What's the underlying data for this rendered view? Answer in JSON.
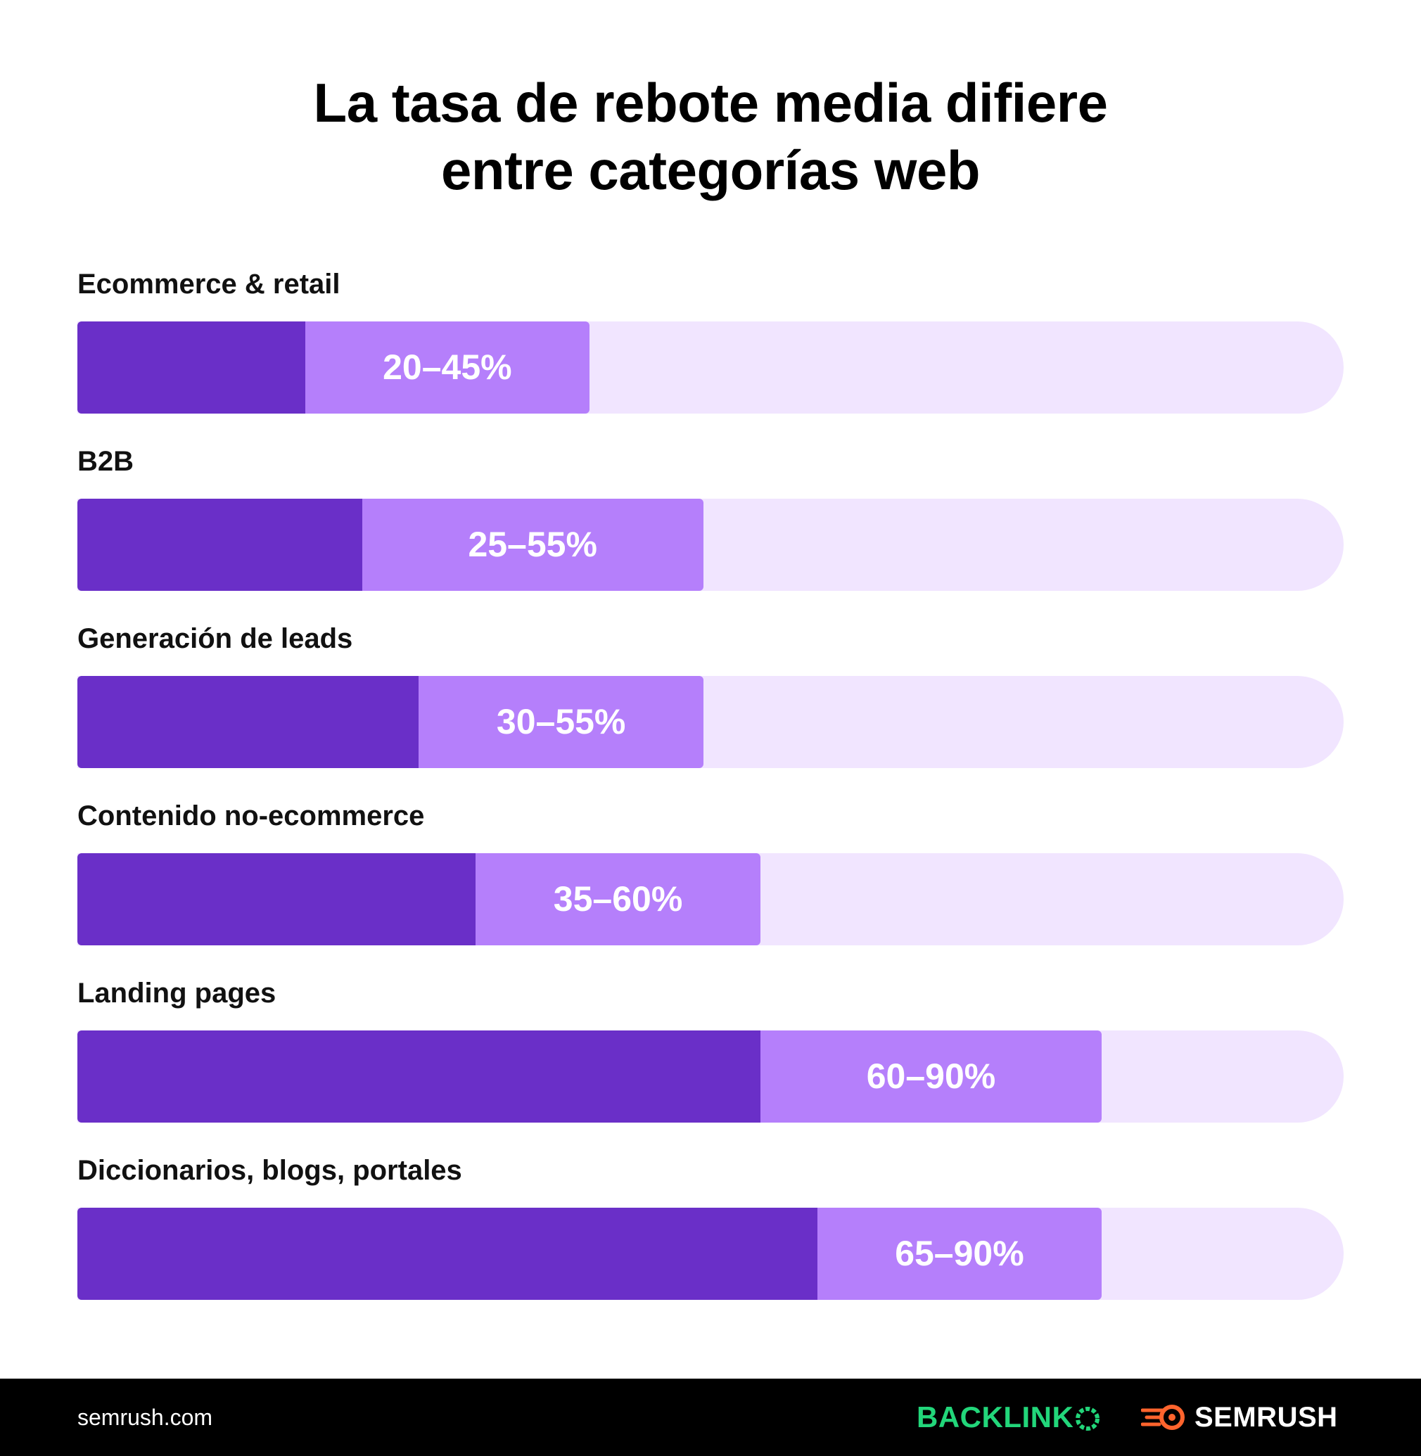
{
  "title_line1": "La tasa de rebote media difiere",
  "title_line2": "entre categorías web",
  "colors": {
    "dark": "#6a2fc8",
    "light": "#b57ffb",
    "track": "#f1e5ff"
  },
  "chart_data": {
    "type": "bar",
    "orientation": "horizontal",
    "stacked_range": true,
    "xlim": [
      0,
      100
    ],
    "categories": [
      "Ecommerce & retail",
      "B2B",
      "Generación de leads",
      "Contenido no-ecommerce",
      "Landing pages",
      "Diccionarios, blogs, portales"
    ],
    "low": [
      20,
      25,
      30,
      35,
      60,
      65
    ],
    "high": [
      45,
      55,
      55,
      60,
      90,
      90
    ],
    "labels": [
      "20–45%",
      "25–55%",
      "30–55%",
      "35–60%",
      "60–90%",
      "65–90%"
    ]
  },
  "footer": {
    "source": "semrush.com",
    "brand1": "BACKLINK",
    "brand2": "SEMRUSH",
    "brand1_icon": "backlinko-o-icon",
    "brand2_icon": "semrush-flame-icon"
  }
}
